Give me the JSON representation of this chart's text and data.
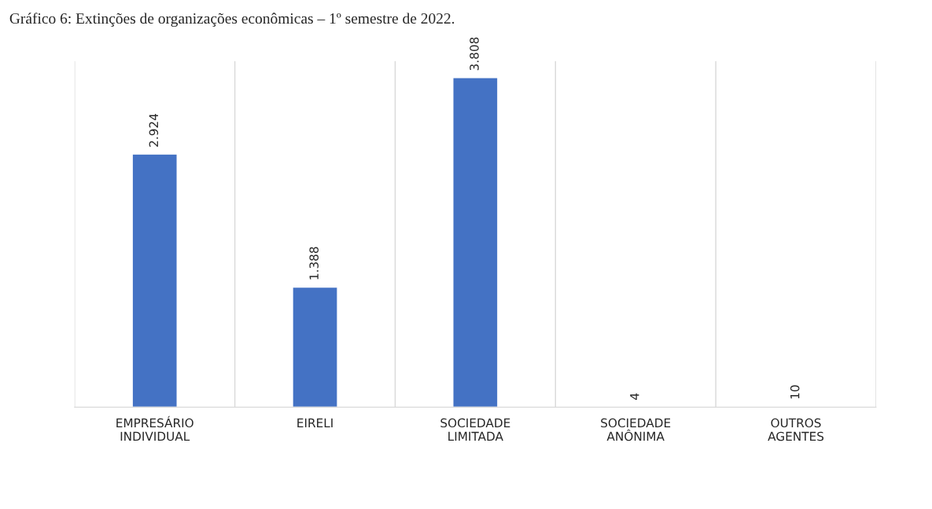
{
  "chart_data": {
    "type": "bar",
    "title": "Gráfico 6: Extinções de organizações econômicas – 1º semestre de 2022.",
    "categories": [
      "EMPRESÁRIO\nINDIVIDUAL",
      "EIRELI",
      "SOCIEDADE\nLIMITADA",
      "SOCIEDADE\nANÔNIMA",
      "OUTROS\nAGENTES"
    ],
    "values": [
      2924,
      1388,
      3808,
      4,
      10
    ],
    "value_labels": [
      "2.924",
      "1.388",
      "3.808",
      "4",
      "10"
    ],
    "color": "#4472c4",
    "grid": "x"
  }
}
